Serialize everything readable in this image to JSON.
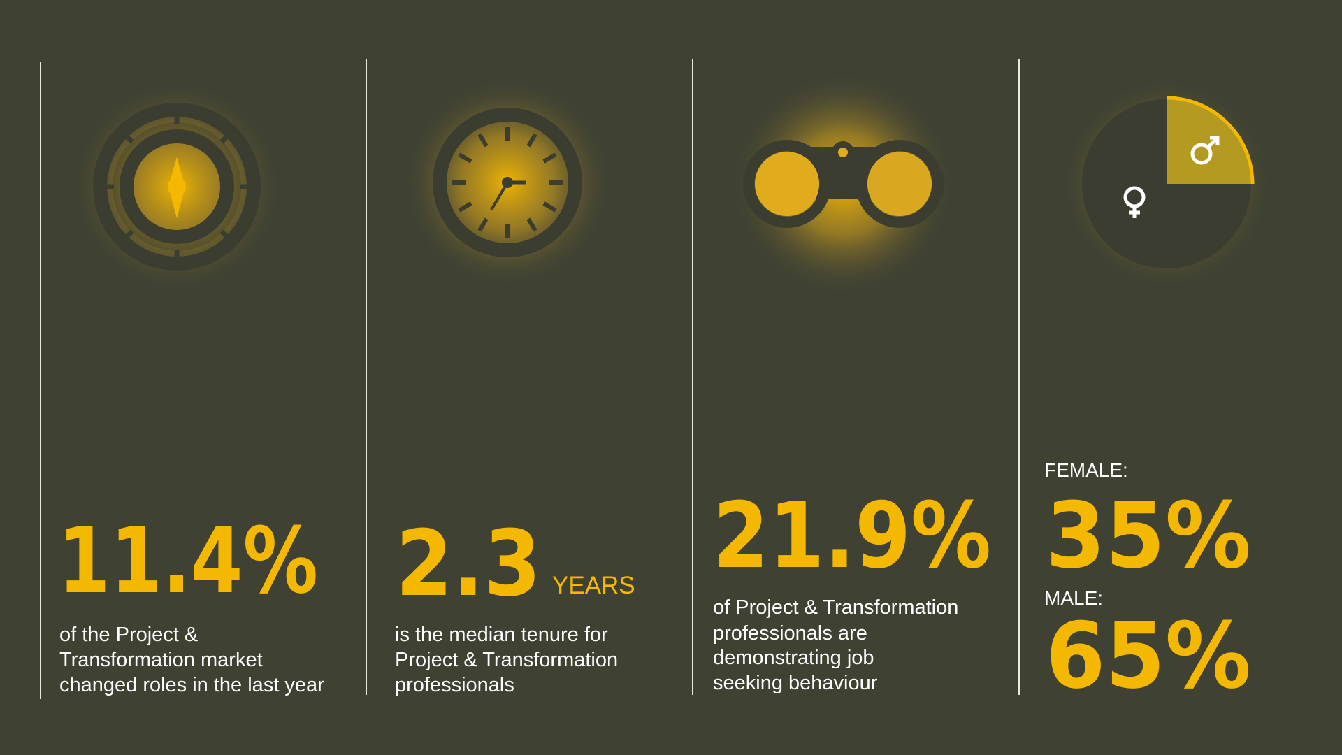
{
  "stats": [
    {
      "value": "11.4%",
      "description": [
        "of the Project &",
        "Transformation market",
        "changed roles in the last year"
      ]
    },
    {
      "value": "2.3",
      "unit": "YEARS",
      "description": [
        "is the median tenure for",
        "Project & Transformation",
        "professionals"
      ]
    },
    {
      "value": "21.9%",
      "description": [
        "of Project & Transformation",
        "professionals are",
        "demonstrating job",
        "seeking behaviour"
      ]
    }
  ],
  "gender": {
    "female_label": "FEMALE:",
    "female_value": "35%",
    "male_label": "MALE:",
    "male_value": "65%"
  }
}
